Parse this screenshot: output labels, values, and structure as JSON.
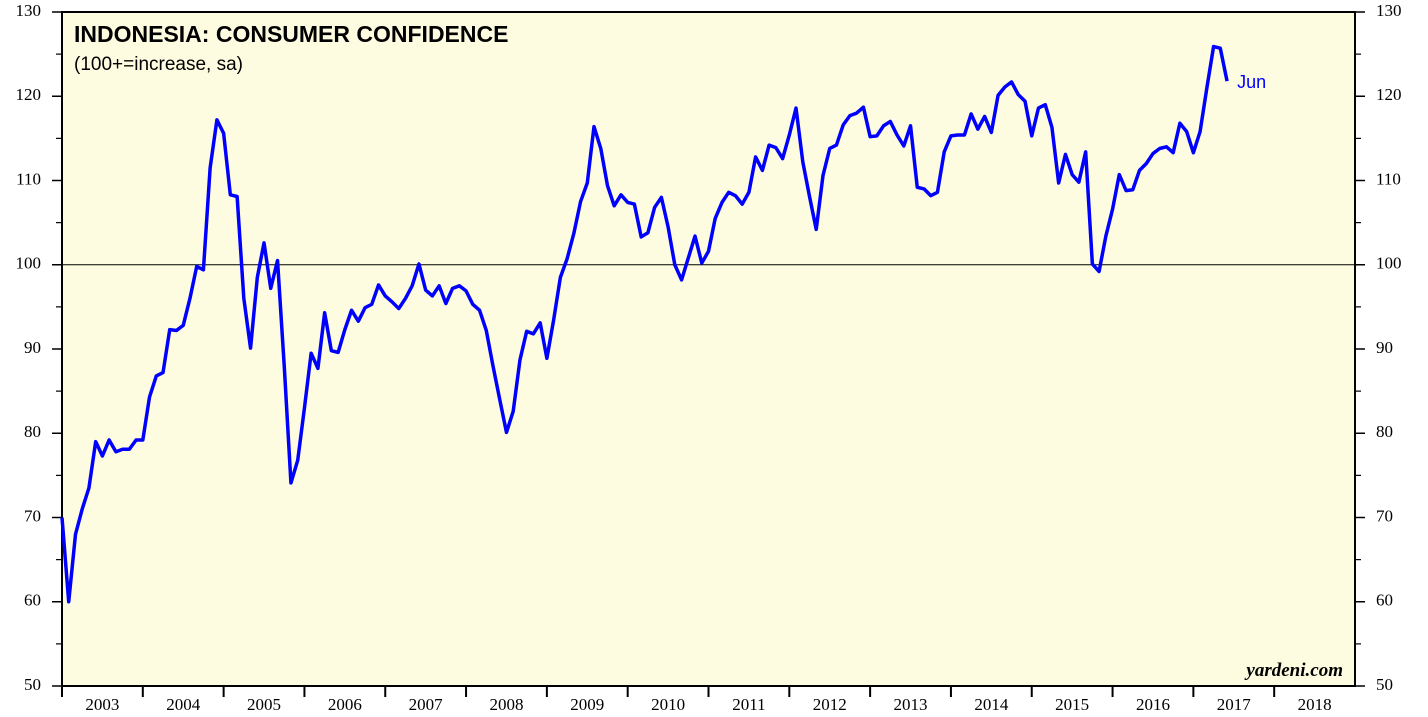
{
  "chart_data": {
    "type": "line",
    "title": "INDONESIA: CONSUMER CONFIDENCE",
    "subtitle": "(100+=increase, sa)",
    "annotation": "Jun",
    "source": "yardeni.com",
    "x": [
      2003,
      2003.083,
      2003.167,
      2003.25,
      2003.333,
      2003.417,
      2003.5,
      2003.583,
      2003.667,
      2003.75,
      2003.833,
      2003.917,
      2004,
      2004.083,
      2004.167,
      2004.25,
      2004.333,
      2004.417,
      2004.5,
      2004.583,
      2004.667,
      2004.75,
      2004.833,
      2004.917,
      2005,
      2005.083,
      2005.167,
      2005.25,
      2005.333,
      2005.417,
      2005.5,
      2005.583,
      2005.667,
      2005.75,
      2005.833,
      2005.917,
      2006,
      2006.083,
      2006.167,
      2006.25,
      2006.333,
      2006.417,
      2006.5,
      2006.583,
      2006.667,
      2006.75,
      2006.833,
      2006.917,
      2007,
      2007.083,
      2007.167,
      2007.25,
      2007.333,
      2007.417,
      2007.5,
      2007.583,
      2007.667,
      2007.75,
      2007.833,
      2007.917,
      2008,
      2008.083,
      2008.167,
      2008.25,
      2008.333,
      2008.417,
      2008.5,
      2008.583,
      2008.667,
      2008.75,
      2008.833,
      2008.917,
      2009,
      2009.083,
      2009.167,
      2009.25,
      2009.333,
      2009.417,
      2009.5,
      2009.583,
      2009.667,
      2009.75,
      2009.833,
      2009.917,
      2010,
      2010.083,
      2010.167,
      2010.25,
      2010.333,
      2010.417,
      2010.5,
      2010.583,
      2010.667,
      2010.75,
      2010.833,
      2010.917,
      2011,
      2011.083,
      2011.167,
      2011.25,
      2011.333,
      2011.417,
      2011.5,
      2011.583,
      2011.667,
      2011.75,
      2011.833,
      2011.917,
      2012,
      2012.083,
      2012.167,
      2012.25,
      2012.333,
      2012.417,
      2012.5,
      2012.583,
      2012.667,
      2012.75,
      2012.833,
      2012.917,
      2013,
      2013.083,
      2013.167,
      2013.25,
      2013.333,
      2013.417,
      2013.5,
      2013.583,
      2013.667,
      2013.75,
      2013.833,
      2013.917,
      2014,
      2014.083,
      2014.167,
      2014.25,
      2014.333,
      2014.417,
      2014.5,
      2014.583,
      2014.667,
      2014.75,
      2014.833,
      2014.917,
      2015,
      2015.083,
      2015.167,
      2015.25,
      2015.333,
      2015.417,
      2015.5,
      2015.583,
      2015.667,
      2015.75,
      2015.833,
      2015.917,
      2016,
      2016.083,
      2016.167,
      2016.25,
      2016.333,
      2016.417,
      2016.5,
      2016.583,
      2016.667,
      2016.75,
      2016.833,
      2016.917,
      2017,
      2017.083,
      2017.167,
      2017.25,
      2017.333,
      2017.417
    ],
    "series": [
      {
        "name": "Consumer Confidence",
        "color": "#0000ff",
        "values": [
          70,
          60,
          68,
          71,
          73.5,
          79,
          77.3,
          79.2,
          77.8,
          78.1,
          78.1,
          79.2,
          79.2,
          84.3,
          86.8,
          87.2,
          92.3,
          92.2,
          92.8,
          96,
          99.8,
          99.4,
          111.5,
          117.2,
          115.6,
          108.3,
          108.1,
          96,
          90.1,
          98.5,
          102.6,
          97.2,
          100.5,
          88,
          74.1,
          76.8,
          83,
          89.5,
          87.7,
          94.3,
          89.8,
          89.6,
          92.3,
          94.6,
          93.3,
          94.9,
          95.3,
          97.6,
          96.3,
          95.6,
          94.8,
          96,
          97.5,
          100.1,
          97,
          96.3,
          97.5,
          95.4,
          97.2,
          97.5,
          96.9,
          95.3,
          94.6,
          92.2,
          88,
          84,
          80.1,
          82.6,
          88.7,
          92.1,
          91.8,
          93.1,
          88.9,
          93.4,
          98.5,
          100.7,
          103.7,
          107.5,
          109.7,
          116.4,
          113.8,
          109.4,
          107,
          108.3,
          107.4,
          107.2,
          103.3,
          103.8,
          106.8,
          108,
          104.5,
          100,
          98.2,
          100.8,
          103.4,
          100.2,
          101.6,
          105.5,
          107.4,
          108.6,
          108.2,
          107.2,
          108.6,
          112.8,
          111.2,
          114.2,
          113.9,
          112.6,
          115.4,
          118.6,
          112.2,
          108.1,
          104.2,
          110.6,
          113.8,
          114.2,
          116.6,
          117.7,
          118,
          118.7,
          115.2,
          115.3,
          116.5,
          117,
          115.4,
          114.1,
          116.5,
          109.2,
          109,
          108.2,
          108.6,
          113.4,
          115.3,
          115.4,
          115.4,
          117.9,
          116.1,
          117.6,
          115.7,
          120.1,
          121.1,
          121.7,
          120.2,
          119.4,
          115.3,
          118.6,
          119,
          116.3,
          109.7,
          113.1,
          110.7,
          109.8,
          113.4,
          100.1,
          99.2,
          103.4,
          106.6,
          110.7,
          108.8,
          108.9,
          111.2,
          112,
          113.2,
          113.8,
          114,
          113.3,
          116.8,
          115.8,
          113.3,
          115.8,
          121,
          125.9,
          125.7,
          121.8
        ]
      }
    ],
    "xlim": [
      2003,
      2019
    ],
    "xticks": [
      2003,
      2004,
      2005,
      2006,
      2007,
      2008,
      2009,
      2010,
      2011,
      2012,
      2013,
      2014,
      2015,
      2016,
      2017,
      2018
    ],
    "ylim": [
      50,
      130
    ],
    "yticks": [
      50,
      60,
      70,
      80,
      90,
      100,
      110,
      120,
      130
    ],
    "yminorticks": [
      55,
      65,
      75,
      85,
      95,
      105,
      115,
      125
    ],
    "reference_line": 100,
    "background": "#fefce0"
  }
}
